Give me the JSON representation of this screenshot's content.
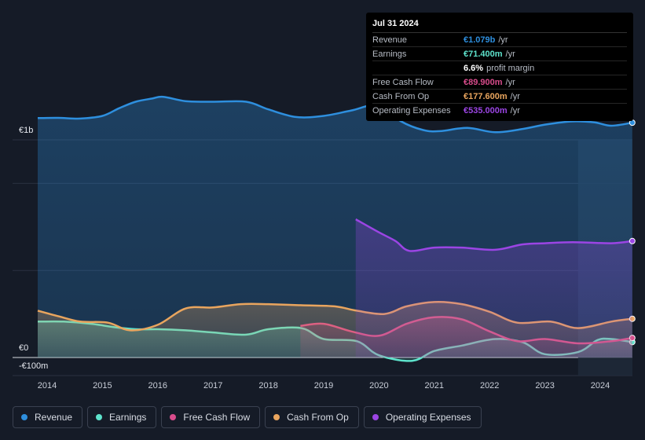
{
  "tooltip": {
    "date": "Jul 31 2024",
    "rows": [
      {
        "name": "Revenue",
        "value": "€1.079b",
        "unit": "/yr",
        "color": "#2e8fde"
      },
      {
        "name": "Earnings",
        "value": "€71.400m",
        "unit": "/yr",
        "color": "#5ee3cc"
      },
      {
        "name": "",
        "value": "6.6%",
        "unit": "profit margin",
        "color": "#ffffff"
      },
      {
        "name": "Free Cash Flow",
        "value": "€89.900m",
        "unit": "/yr",
        "color": "#d94c8c"
      },
      {
        "name": "Cash From Op",
        "value": "€177.600m",
        "unit": "/yr",
        "color": "#e9a55e"
      },
      {
        "name": "Operating Expenses",
        "value": "€535.000m",
        "unit": "/yr",
        "color": "#9b45e4"
      }
    ]
  },
  "axis": {
    "top_label": "€1b",
    "zero_label": "€0",
    "bottom_label": "-€100m"
  },
  "legend": [
    {
      "label": "Revenue",
      "color": "#2e8fde"
    },
    {
      "label": "Earnings",
      "color": "#5ee3cc"
    },
    {
      "label": "Free Cash Flow",
      "color": "#d94c8c"
    },
    {
      "label": "Cash From Op",
      "color": "#e9a55e"
    },
    {
      "label": "Operating Expenses",
      "color": "#9b45e4"
    }
  ],
  "chart_data": {
    "type": "area",
    "title": "",
    "unit": "€m",
    "ylim": [
      -100,
      1200
    ],
    "x_ticks": [
      "2014",
      "2015",
      "2016",
      "2017",
      "2018",
      "2019",
      "2020",
      "2021",
      "2022",
      "2023",
      "2024"
    ],
    "forecast_region_start": 2023.6,
    "series": [
      {
        "name": "Revenue",
        "color": "#2e8fde",
        "x": [
          2013.83,
          2014.2,
          2014.6,
          2015.0,
          2015.3,
          2015.6,
          2015.9,
          2016.1,
          2016.5,
          2017.0,
          2017.6,
          2018.0,
          2018.5,
          2019.0,
          2019.5,
          2020.0,
          2020.4,
          2020.8,
          2021.1,
          2021.6,
          2022.1,
          2022.6,
          2023.0,
          2023.5,
          2023.9,
          2024.2,
          2024.58
        ],
        "y": [
          1100,
          1101,
          1098,
          1110,
          1145,
          1175,
          1190,
          1198,
          1178,
          1175,
          1175,
          1140,
          1105,
          1110,
          1135,
          1160,
          1085,
          1045,
          1040,
          1055,
          1035,
          1050,
          1070,
          1085,
          1080,
          1065,
          1079
        ]
      },
      {
        "name": "Earnings",
        "color": "#5ee3cc",
        "x": [
          2013.83,
          2014.3,
          2014.8,
          2015.2,
          2015.6,
          2016.0,
          2016.5,
          2017.0,
          2017.6,
          2018.0,
          2018.6,
          2019.0,
          2019.6,
          2020.0,
          2020.6,
          2021.0,
          2021.5,
          2022.1,
          2022.6,
          2023.0,
          2023.6,
          2023.95,
          2024.2,
          2024.58
        ],
        "y": [
          165,
          165,
          155,
          140,
          130,
          130,
          125,
          115,
          105,
          130,
          135,
          85,
          75,
          10,
          -15,
          30,
          55,
          85,
          70,
          15,
          25,
          80,
          85,
          71
        ]
      },
      {
        "name": "Free Cash Flow",
        "color": "#d94c8c",
        "x": [
          2018.58,
          2019.0,
          2019.5,
          2020.0,
          2020.5,
          2021.0,
          2021.5,
          2022.0,
          2022.5,
          2023.0,
          2023.6,
          2024.2,
          2024.58
        ],
        "y": [
          145,
          155,
          120,
          100,
          155,
          185,
          175,
          120,
          75,
          85,
          65,
          75,
          90
        ]
      },
      {
        "name": "Cash From Op",
        "color": "#e9a55e",
        "x": [
          2013.83,
          2014.2,
          2014.6,
          2015.1,
          2015.5,
          2016.0,
          2016.5,
          2017.0,
          2017.5,
          2018.0,
          2018.6,
          2019.2,
          2019.6,
          2020.1,
          2020.5,
          2021.0,
          2021.5,
          2022.0,
          2022.5,
          2023.1,
          2023.6,
          2024.2,
          2024.58
        ],
        "y": [
          215,
          190,
          165,
          160,
          125,
          150,
          225,
          230,
          245,
          245,
          240,
          235,
          215,
          200,
          235,
          255,
          245,
          210,
          160,
          165,
          135,
          165,
          178
        ]
      },
      {
        "name": "Operating Expenses",
        "color": "#9b45e4",
        "x": [
          2019.58,
          2020.0,
          2020.3,
          2020.55,
          2021.0,
          2021.5,
          2022.1,
          2022.6,
          2023.0,
          2023.5,
          2024.2,
          2024.58
        ],
        "y": [
          635,
          575,
          535,
          490,
          505,
          505,
          495,
          520,
          525,
          530,
          525,
          535
        ]
      }
    ]
  }
}
